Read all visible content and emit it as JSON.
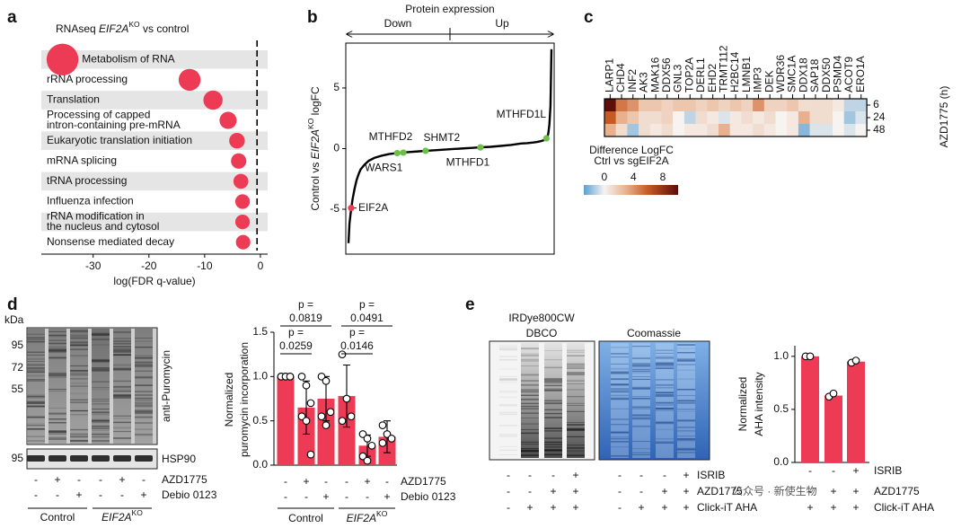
{
  "chart_data": [
    {
      "type": "dot",
      "letter": "a",
      "title": [
        "RNAseq ",
        "EIF2A",
        "KO",
        " vs control"
      ],
      "categories": [
        [
          "Metabolism of RNA"
        ],
        [
          "rRNA processing"
        ],
        [
          "Translation"
        ],
        [
          "Processing of capped",
          "intron-containing pre-mRNA"
        ],
        [
          "Eukaryotic translation initiation"
        ],
        [
          "mRNA splicing"
        ],
        [
          "tRNA processing"
        ],
        [
          "Influenza infection"
        ],
        [
          "rRNA modification in",
          "the nucleus and cytosol"
        ],
        [
          "Nonsense mediated decay"
        ]
      ],
      "values": [
        -35.5,
        -12.7,
        -8.5,
        -5.8,
        -4.2,
        -3.9,
        -3.5,
        -3.2,
        -3.2,
        -3.1
      ],
      "color": "#ee3b55",
      "band_color": "#e5e5e5",
      "xlim": [
        -39.3,
        1.3
      ],
      "xticks": [
        -30,
        -20,
        -10,
        0
      ],
      "xlabel": "log(FDR q-value)",
      "threshold": -0.6
    },
    {
      "type": "ranked",
      "letter": "b",
      "title": "Protein expression",
      "left_label": "Down",
      "right_label": "Up",
      "ylabel": [
        "Control vs ",
        "EIF2A",
        "KO",
        " logFC"
      ],
      "x": [
        0,
        0.5,
        1,
        1.5,
        2,
        3,
        4,
        5,
        6,
        8,
        10,
        13,
        16,
        20,
        25,
        30,
        35,
        40,
        45,
        50,
        55,
        60,
        65,
        70,
        75,
        80,
        85,
        88,
        91,
        93,
        95,
        96,
        97,
        98,
        98.5,
        99,
        99.5,
        100
      ],
      "values": [
        -7.8,
        -6.2,
        -5.4,
        -4.8,
        -4.2,
        -3.3,
        -2.6,
        -2.1,
        -1.7,
        -1.3,
        -1.0,
        -0.75,
        -0.6,
        -0.45,
        -0.35,
        -0.28,
        -0.22,
        -0.16,
        -0.1,
        -0.05,
        0,
        0.05,
        0.1,
        0.15,
        0.22,
        0.3,
        0.42,
        0.45,
        0.5,
        0.55,
        0.62,
        0.68,
        0.75,
        0.95,
        1.3,
        2.0,
        3.5,
        8.2
      ],
      "xlim": [
        0,
        100
      ],
      "ylim": [
        -8.7,
        8.7
      ],
      "yticks": [
        -5,
        0,
        5
      ],
      "color": "#000000",
      "highlights": [
        {
          "label": "EIF2A",
          "x": 1.3,
          "y": -4.9,
          "color": "#ee3b55"
        },
        {
          "label": "WARS1",
          "x": 24,
          "y": -0.37,
          "color": "#6cc04a"
        },
        {
          "label": "MTHFD2",
          "x": 27,
          "y": -0.33,
          "color": "#6cc04a"
        },
        {
          "label": "SHMT2",
          "x": 38,
          "y": -0.18,
          "color": "#6cc04a"
        },
        {
          "label": "MTHFD1",
          "x": 65,
          "y": 0.1,
          "color": "#6cc04a"
        },
        {
          "label": "MTHFD1L",
          "x": 97.5,
          "y": 0.85,
          "color": "#6cc04a"
        }
      ]
    },
    {
      "type": "heatmap",
      "letter": "c",
      "columns": [
        "LARP1",
        "CHD4",
        "INF2",
        "AK3",
        "MAK16",
        "DDX56",
        "GNL3",
        "TOP2A",
        "DERL1",
        "EHD2",
        "TRMT112",
        "H2BC14",
        "LMNB1",
        "IMP3",
        "DEK",
        "WDR36",
        "SMC1A",
        "DDX18",
        "SAP18",
        "DDX50",
        "PSMD4",
        "ACOT9",
        "ERO1A"
      ],
      "rows": [
        6,
        24,
        48
      ],
      "ylabel": "AZD1775 (h)",
      "values": [
        [
          10,
          5,
          4,
          2,
          2,
          1.5,
          2,
          2,
          1.5,
          2,
          1.5,
          2,
          1.5,
          4,
          1.5,
          1.5,
          2,
          1,
          1,
          1,
          0.5,
          -1,
          -1
        ],
        [
          6,
          3,
          2,
          1,
          1,
          1.5,
          0,
          -1,
          1,
          0.5,
          -0.5,
          0.5,
          1,
          0.5,
          1,
          0,
          0.5,
          3,
          1,
          1,
          0,
          -1.5,
          -0.5
        ],
        [
          3,
          1,
          -1.5,
          1,
          0.5,
          1,
          0,
          0.5,
          0.5,
          1,
          3,
          0.5,
          0.5,
          1,
          0.5,
          0,
          0.5,
          -2,
          -0.5,
          -0.5,
          0,
          -0.5,
          0
        ]
      ],
      "legend_title": [
        "Difference LogFC",
        "Ctrl vs sgEIF2A"
      ],
      "clim": [
        -2.8,
        10.1
      ],
      "cticks": [
        0,
        4,
        8
      ],
      "colormap": [
        [
          -2.8,
          "#5b9fd2"
        ],
        [
          0,
          "#f6f3f1"
        ],
        [
          3,
          "#e8b08d"
        ],
        [
          6,
          "#c55a25"
        ],
        [
          10.1,
          "#5b0c0a"
        ]
      ]
    },
    {
      "type": "bar",
      "letter": "d",
      "ylabel": [
        "Normalized",
        "puromycin incorporation"
      ],
      "values": [
        1.0,
        0.65,
        0.75,
        0.78,
        0.22,
        0.32
      ],
      "errors": [
        0,
        0.3,
        0.25,
        0.35,
        0.12,
        0.18
      ],
      "points": [
        [
          1,
          1,
          1,
          1,
          1,
          1
        ],
        [
          1.0,
          0.9,
          0.7,
          0.55,
          0.5,
          0.12
        ],
        [
          1.0,
          0.95,
          0.6,
          0.55,
          0.45
        ],
        [
          1.25,
          0.75,
          0.55,
          0.5
        ],
        [
          0.35,
          0.3,
          0.22,
          0.1,
          0.05
        ],
        [
          0.45,
          0.35,
          0.3,
          0.25
        ]
      ],
      "ylim": [
        0,
        1.5
      ],
      "yticks": [
        {
          "value": 0,
          "label": "0.0"
        },
        0.5,
        {
          "value": 1,
          "label": "1.0"
        },
        1.5
      ],
      "color": "#ee3b55",
      "annotations": [
        {
          "lines": [
            "p =",
            "0.0819"
          ],
          "from": 0,
          "to": 2
        },
        {
          "lines": [
            "p =",
            "0.0259"
          ],
          "from": 0,
          "to": 1
        },
        {
          "lines": [
            "p =",
            "0.0491"
          ],
          "from": 3,
          "to": 5
        },
        {
          "lines": [
            "p =",
            "0.0146"
          ],
          "from": 3,
          "to": 4
        }
      ],
      "conditions": [
        {
          "name": "AZD1775",
          "signs": [
            "-",
            "+",
            "-",
            "-",
            "+",
            "-"
          ]
        },
        {
          "name": "Debio 0123",
          "signs": [
            "-",
            "-",
            "+",
            "-",
            "-",
            "+"
          ]
        }
      ],
      "groups": [
        {
          "name": "Control",
          "from": 0,
          "to": 2
        },
        {
          "name": [
            "EIF2A",
            "KO"
          ],
          "from": 3,
          "to": 5
        }
      ]
    },
    {
      "type": "bar",
      "letter": "e",
      "ylabel": [
        "Normalized",
        "AHA intensity"
      ],
      "values": [
        1.0,
        0.63,
        0.95
      ],
      "points": [
        [
          1.0,
          1.0
        ],
        [
          0.62,
          0.65
        ],
        [
          0.94,
          0.96
        ]
      ],
      "ylim": [
        0,
        1.1
      ],
      "yticks": [
        {
          "value": 0,
          "label": "0.0"
        },
        0.5,
        {
          "value": 1,
          "label": "1.0"
        }
      ],
      "color": "#ee3b55",
      "conditions": [
        {
          "name": "ISRIB",
          "signs": [
            "-",
            "-",
            "+"
          ]
        },
        {
          "name": "AZD1775",
          "signs": [
            "-",
            "+",
            "+"
          ]
        },
        {
          "name": "Click-iT AHA",
          "signs": [
            "+",
            "+",
            "+"
          ]
        }
      ]
    }
  ],
  "blots": {
    "d": {
      "kda_label": "kDa",
      "markers": [
        95,
        72,
        55
      ],
      "loading_marker": 95,
      "antibody": "anti-Puromycin",
      "loading": "HSP90",
      "conditions": [
        {
          "name": "AZD1775",
          "signs": [
            "-",
            "+",
            "-",
            "-",
            "+",
            "-"
          ]
        },
        {
          "name": "Debio 0123",
          "signs": [
            "-",
            "-",
            "+",
            "-",
            "-",
            "+"
          ]
        }
      ],
      "groups": [
        {
          "name": "Control",
          "from": 0,
          "to": 2
        },
        {
          "name": [
            "EIF2A",
            "KO"
          ],
          "from": 3,
          "to": 5
        }
      ]
    },
    "e": {
      "panels": [
        [
          "IRDye800CW",
          "DBCO"
        ],
        [
          "Coomassie"
        ]
      ],
      "conditions": [
        {
          "name": "ISRIB",
          "signs": [
            "-",
            "-",
            "-",
            "+",
            "-",
            "-",
            "-",
            "+"
          ]
        },
        {
          "name": "AZD1775",
          "signs": [
            "-",
            "-",
            "+",
            "+",
            "-",
            "-",
            "+",
            "+"
          ]
        },
        {
          "name": "Click-iT AHA",
          "signs": [
            "-",
            "+",
            "+",
            "+",
            "-",
            "+",
            "+",
            "+"
          ]
        }
      ]
    }
  },
  "watermark": "公众号 · 新使生物"
}
